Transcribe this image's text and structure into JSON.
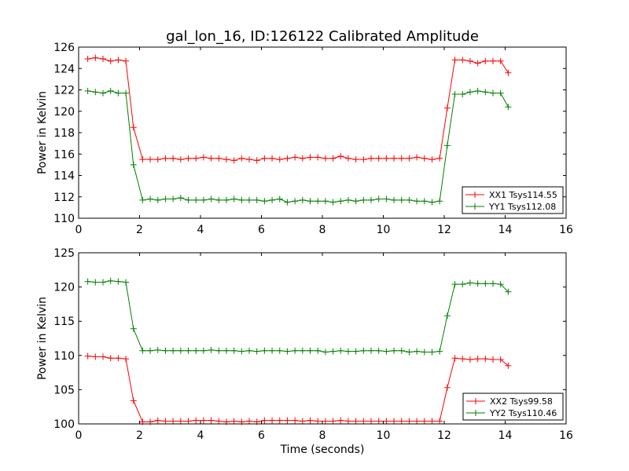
{
  "chart_data": [
    {
      "type": "line",
      "title": "gal_lon_16, ID:126122 Calibrated Amplitude",
      "xlabel": "",
      "ylabel": "Power in Kelvin",
      "xlim": [
        0,
        16
      ],
      "ylim": [
        110,
        126
      ],
      "xticks": [
        0,
        2,
        4,
        6,
        8,
        10,
        12,
        14,
        16
      ],
      "yticks": [
        110,
        112,
        114,
        116,
        118,
        120,
        122,
        124,
        126
      ],
      "grid": false,
      "legend_position": "lower-right",
      "series": [
        {
          "name": "XX1 Tsys114.55",
          "color": "#ff0000",
          "marker": "plus",
          "x": [
            0.3,
            0.55,
            0.8,
            1.05,
            1.3,
            1.55,
            1.8,
            2.1,
            2.35,
            2.6,
            2.85,
            3.1,
            3.35,
            3.6,
            3.85,
            4.1,
            4.35,
            4.6,
            4.85,
            5.1,
            5.35,
            5.6,
            5.85,
            6.1,
            6.35,
            6.6,
            6.85,
            7.1,
            7.35,
            7.6,
            7.85,
            8.1,
            8.35,
            8.6,
            8.85,
            9.1,
            9.35,
            9.6,
            9.85,
            10.1,
            10.35,
            10.6,
            10.85,
            11.1,
            11.35,
            11.6,
            11.85,
            12.1,
            12.35,
            12.6,
            12.85,
            13.1,
            13.35,
            13.6,
            13.85,
            14.1
          ],
          "y": [
            124.9,
            125.0,
            124.9,
            124.7,
            124.8,
            124.7,
            118.5,
            115.5,
            115.5,
            115.5,
            115.6,
            115.6,
            115.5,
            115.6,
            115.6,
            115.7,
            115.6,
            115.6,
            115.5,
            115.4,
            115.6,
            115.5,
            115.4,
            115.6,
            115.6,
            115.5,
            115.6,
            115.7,
            115.6,
            115.7,
            115.7,
            115.6,
            115.6,
            115.8,
            115.6,
            115.5,
            115.5,
            115.6,
            115.6,
            115.6,
            115.6,
            115.6,
            115.6,
            115.7,
            115.6,
            115.5,
            115.6,
            120.3,
            124.8,
            124.8,
            124.7,
            124.5,
            124.7,
            124.7,
            124.7,
            123.6
          ]
        },
        {
          "name": "YY1 Tsys112.08",
          "color": "#008000",
          "marker": "plus",
          "x": [
            0.3,
            0.55,
            0.8,
            1.05,
            1.3,
            1.55,
            1.8,
            2.1,
            2.35,
            2.6,
            2.85,
            3.1,
            3.35,
            3.6,
            3.85,
            4.1,
            4.35,
            4.6,
            4.85,
            5.1,
            5.35,
            5.6,
            5.85,
            6.1,
            6.35,
            6.6,
            6.85,
            7.1,
            7.35,
            7.6,
            7.85,
            8.1,
            8.35,
            8.6,
            8.85,
            9.1,
            9.35,
            9.6,
            9.85,
            10.1,
            10.35,
            10.6,
            10.85,
            11.1,
            11.35,
            11.6,
            11.85,
            12.1,
            12.35,
            12.6,
            12.85,
            13.1,
            13.35,
            13.6,
            13.85,
            14.1
          ],
          "y": [
            121.9,
            121.8,
            121.7,
            121.9,
            121.7,
            121.7,
            115.0,
            111.7,
            111.8,
            111.7,
            111.8,
            111.8,
            111.9,
            111.7,
            111.7,
            111.7,
            111.8,
            111.7,
            111.7,
            111.8,
            111.7,
            111.7,
            111.7,
            111.6,
            111.7,
            111.8,
            111.5,
            111.6,
            111.7,
            111.6,
            111.6,
            111.6,
            111.5,
            111.6,
            111.7,
            111.6,
            111.7,
            111.7,
            111.8,
            111.8,
            111.7,
            111.7,
            111.7,
            111.6,
            111.6,
            111.5,
            111.6,
            116.8,
            121.6,
            121.6,
            121.8,
            121.9,
            121.8,
            121.7,
            121.7,
            120.4
          ]
        }
      ]
    },
    {
      "type": "line",
      "title": "",
      "xlabel": "Time (seconds)",
      "ylabel": "Power in Kelvin",
      "xlim": [
        0,
        16
      ],
      "ylim": [
        100,
        125
      ],
      "xticks": [
        0,
        2,
        4,
        6,
        8,
        10,
        12,
        14,
        16
      ],
      "yticks": [
        100,
        105,
        110,
        115,
        120,
        125
      ],
      "grid": false,
      "legend_position": "lower-right",
      "series": [
        {
          "name": "XX2 Tsys99.58",
          "color": "#ff0000",
          "marker": "plus",
          "x": [
            0.3,
            0.55,
            0.8,
            1.05,
            1.3,
            1.55,
            1.8,
            2.1,
            2.35,
            2.6,
            2.85,
            3.1,
            3.35,
            3.6,
            3.85,
            4.1,
            4.35,
            4.6,
            4.85,
            5.1,
            5.35,
            5.6,
            5.85,
            6.1,
            6.35,
            6.6,
            6.85,
            7.1,
            7.35,
            7.6,
            7.85,
            8.1,
            8.35,
            8.6,
            8.85,
            9.1,
            9.35,
            9.6,
            9.85,
            10.1,
            10.35,
            10.6,
            10.85,
            11.1,
            11.35,
            11.6,
            11.85,
            12.1,
            12.35,
            12.6,
            12.85,
            13.1,
            13.35,
            13.6,
            13.85,
            14.1
          ],
          "y": [
            109.9,
            109.8,
            109.8,
            109.6,
            109.6,
            109.5,
            103.4,
            100.3,
            100.3,
            100.5,
            100.4,
            100.4,
            100.4,
            100.4,
            100.5,
            100.5,
            100.5,
            100.4,
            100.3,
            100.4,
            100.3,
            100.4,
            100.3,
            100.5,
            100.5,
            100.5,
            100.5,
            100.5,
            100.4,
            100.5,
            100.4,
            100.4,
            100.4,
            100.5,
            100.4,
            100.4,
            100.4,
            100.4,
            100.4,
            100.4,
            100.4,
            100.4,
            100.4,
            100.4,
            100.4,
            100.4,
            100.4,
            105.3,
            109.6,
            109.5,
            109.4,
            109.5,
            109.5,
            109.4,
            109.4,
            108.5
          ]
        },
        {
          "name": "YY2 Tsys110.46",
          "color": "#008000",
          "marker": "plus",
          "x": [
            0.3,
            0.55,
            0.8,
            1.05,
            1.3,
            1.55,
            1.8,
            2.1,
            2.35,
            2.6,
            2.85,
            3.1,
            3.35,
            3.6,
            3.85,
            4.1,
            4.35,
            4.6,
            4.85,
            5.1,
            5.35,
            5.6,
            5.85,
            6.1,
            6.35,
            6.6,
            6.85,
            7.1,
            7.35,
            7.6,
            7.85,
            8.1,
            8.35,
            8.6,
            8.85,
            9.1,
            9.35,
            9.6,
            9.85,
            10.1,
            10.35,
            10.6,
            10.85,
            11.1,
            11.35,
            11.6,
            11.85,
            12.1,
            12.35,
            12.6,
            12.85,
            13.1,
            13.35,
            13.6,
            13.85,
            14.1
          ],
          "y": [
            120.8,
            120.7,
            120.7,
            120.9,
            120.8,
            120.7,
            113.9,
            110.7,
            110.7,
            110.8,
            110.7,
            110.7,
            110.7,
            110.7,
            110.7,
            110.7,
            110.8,
            110.7,
            110.7,
            110.7,
            110.6,
            110.7,
            110.6,
            110.7,
            110.7,
            110.7,
            110.6,
            110.7,
            110.7,
            110.7,
            110.7,
            110.5,
            110.6,
            110.7,
            110.6,
            110.6,
            110.7,
            110.7,
            110.7,
            110.6,
            110.7,
            110.7,
            110.5,
            110.6,
            110.5,
            110.5,
            110.6,
            115.8,
            120.4,
            120.4,
            120.6,
            120.5,
            120.5,
            120.5,
            120.4,
            119.3
          ]
        }
      ]
    }
  ]
}
